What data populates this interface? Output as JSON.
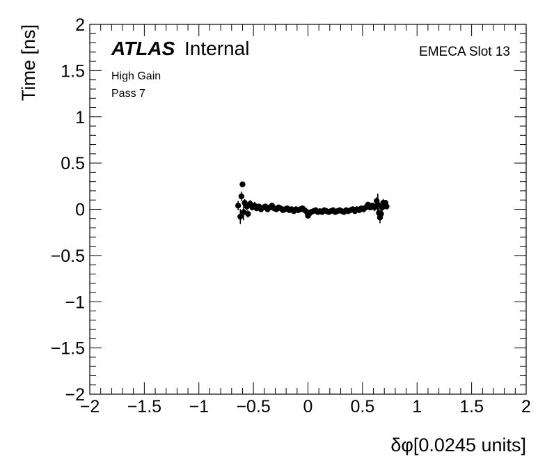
{
  "chart_data": {
    "type": "scatter",
    "xlabel": "δφ[0.0245 units]",
    "ylabel": "Time [ns]",
    "xlim": [
      -2,
      2
    ],
    "ylim": [
      -2,
      2
    ],
    "x_ticks": [
      "−2",
      "−1.5",
      "−1",
      "−0.5",
      "0",
      "0.5",
      "1",
      "1.5",
      "2"
    ],
    "y_ticks": [
      "−2",
      "−1.5",
      "−1",
      "−0.5",
      "0",
      "0.5",
      "1",
      "1.5",
      "2"
    ],
    "grid": false,
    "atlas_label": {
      "bold": "ATLAS",
      "text": "Internal"
    },
    "annotations": [
      "High Gain",
      "Pass 7"
    ],
    "slot_label": "EMECA Slot 13",
    "points": [
      {
        "x": -0.64,
        "y": 0.04,
        "err": 0.05
      },
      {
        "x": -0.62,
        "y": -0.08,
        "err": 0.08
      },
      {
        "x": -0.61,
        "y": 0.14,
        "err": 0.05
      },
      {
        "x": -0.6,
        "y": 0.27,
        "err": 0.03
      },
      {
        "x": -0.59,
        "y": -0.03,
        "err": 0.09
      },
      {
        "x": -0.58,
        "y": 0.07,
        "err": 0.04
      },
      {
        "x": -0.56,
        "y": 0.03,
        "err": 0.04
      },
      {
        "x": -0.55,
        "y": -0.05,
        "err": 0.04
      },
      {
        "x": -0.53,
        "y": 0.06,
        "err": 0.04
      },
      {
        "x": -0.51,
        "y": 0.02,
        "err": 0.03
      },
      {
        "x": -0.49,
        "y": 0.04,
        "err": 0.04
      },
      {
        "x": -0.47,
        "y": 0.01,
        "err": 0.03
      },
      {
        "x": -0.45,
        "y": 0.03,
        "err": 0.03
      },
      {
        "x": -0.43,
        "y": 0.0,
        "err": 0.03
      },
      {
        "x": -0.41,
        "y": 0.02,
        "err": 0.03
      },
      {
        "x": -0.39,
        "y": 0.03,
        "err": 0.03
      },
      {
        "x": -0.37,
        "y": 0.0,
        "err": 0.03
      },
      {
        "x": -0.35,
        "y": 0.02,
        "err": 0.02
      },
      {
        "x": -0.33,
        "y": 0.04,
        "err": 0.03
      },
      {
        "x": -0.31,
        "y": 0.01,
        "err": 0.02
      },
      {
        "x": -0.29,
        "y": 0.0,
        "err": 0.02
      },
      {
        "x": -0.27,
        "y": 0.02,
        "err": 0.02
      },
      {
        "x": -0.25,
        "y": 0.01,
        "err": 0.02
      },
      {
        "x": -0.23,
        "y": -0.01,
        "err": 0.02
      },
      {
        "x": -0.21,
        "y": 0.0,
        "err": 0.02
      },
      {
        "x": -0.19,
        "y": 0.01,
        "err": 0.02
      },
      {
        "x": -0.17,
        "y": -0.01,
        "err": 0.02
      },
      {
        "x": -0.15,
        "y": 0.0,
        "err": 0.02
      },
      {
        "x": -0.13,
        "y": -0.02,
        "err": 0.02
      },
      {
        "x": -0.11,
        "y": 0.0,
        "err": 0.02
      },
      {
        "x": -0.09,
        "y": -0.01,
        "err": 0.02
      },
      {
        "x": -0.07,
        "y": 0.0,
        "err": 0.02
      },
      {
        "x": -0.05,
        "y": 0.01,
        "err": 0.02
      },
      {
        "x": -0.03,
        "y": -0.01,
        "err": 0.02
      },
      {
        "x": -0.01,
        "y": -0.03,
        "err": 0.02
      },
      {
        "x": 0.0,
        "y": -0.07,
        "err": 0.02
      },
      {
        "x": 0.01,
        "y": -0.05,
        "err": 0.02
      },
      {
        "x": 0.03,
        "y": -0.03,
        "err": 0.02
      },
      {
        "x": 0.05,
        "y": -0.02,
        "err": 0.02
      },
      {
        "x": 0.07,
        "y": -0.01,
        "err": 0.02
      },
      {
        "x": 0.09,
        "y": -0.03,
        "err": 0.02
      },
      {
        "x": 0.11,
        "y": -0.02,
        "err": 0.02
      },
      {
        "x": 0.13,
        "y": -0.03,
        "err": 0.02
      },
      {
        "x": 0.15,
        "y": -0.01,
        "err": 0.02
      },
      {
        "x": 0.17,
        "y": -0.02,
        "err": 0.02
      },
      {
        "x": 0.19,
        "y": -0.03,
        "err": 0.02
      },
      {
        "x": 0.21,
        "y": -0.02,
        "err": 0.02
      },
      {
        "x": 0.23,
        "y": -0.01,
        "err": 0.02
      },
      {
        "x": 0.25,
        "y": -0.03,
        "err": 0.02
      },
      {
        "x": 0.27,
        "y": -0.02,
        "err": 0.02
      },
      {
        "x": 0.29,
        "y": -0.01,
        "err": 0.02
      },
      {
        "x": 0.31,
        "y": -0.02,
        "err": 0.02
      },
      {
        "x": 0.33,
        "y": -0.03,
        "err": 0.02
      },
      {
        "x": 0.35,
        "y": -0.01,
        "err": 0.02
      },
      {
        "x": 0.37,
        "y": -0.02,
        "err": 0.02
      },
      {
        "x": 0.39,
        "y": -0.01,
        "err": 0.02
      },
      {
        "x": 0.41,
        "y": 0.0,
        "err": 0.02
      },
      {
        "x": 0.43,
        "y": -0.02,
        "err": 0.02
      },
      {
        "x": 0.45,
        "y": 0.0,
        "err": 0.02
      },
      {
        "x": 0.47,
        "y": -0.01,
        "err": 0.02
      },
      {
        "x": 0.49,
        "y": 0.01,
        "err": 0.02
      },
      {
        "x": 0.51,
        "y": 0.0,
        "err": 0.02
      },
      {
        "x": 0.53,
        "y": 0.02,
        "err": 0.03
      },
      {
        "x": 0.55,
        "y": 0.05,
        "err": 0.03
      },
      {
        "x": 0.57,
        "y": 0.02,
        "err": 0.03
      },
      {
        "x": 0.59,
        "y": 0.04,
        "err": 0.03
      },
      {
        "x": 0.61,
        "y": 0.02,
        "err": 0.04
      },
      {
        "x": 0.63,
        "y": 0.09,
        "err": 0.04
      },
      {
        "x": 0.64,
        "y": 0.05,
        "err": 0.12
      },
      {
        "x": 0.65,
        "y": -0.04,
        "err": 0.06
      },
      {
        "x": 0.66,
        "y": -0.09,
        "err": 0.06
      },
      {
        "x": 0.67,
        "y": -0.05,
        "err": 0.05
      },
      {
        "x": 0.68,
        "y": 0.02,
        "err": 0.04
      },
      {
        "x": 0.69,
        "y": 0.07,
        "err": 0.04
      },
      {
        "x": 0.71,
        "y": 0.07,
        "err": 0.03
      },
      {
        "x": 0.72,
        "y": 0.03,
        "err": 0.03
      }
    ]
  }
}
